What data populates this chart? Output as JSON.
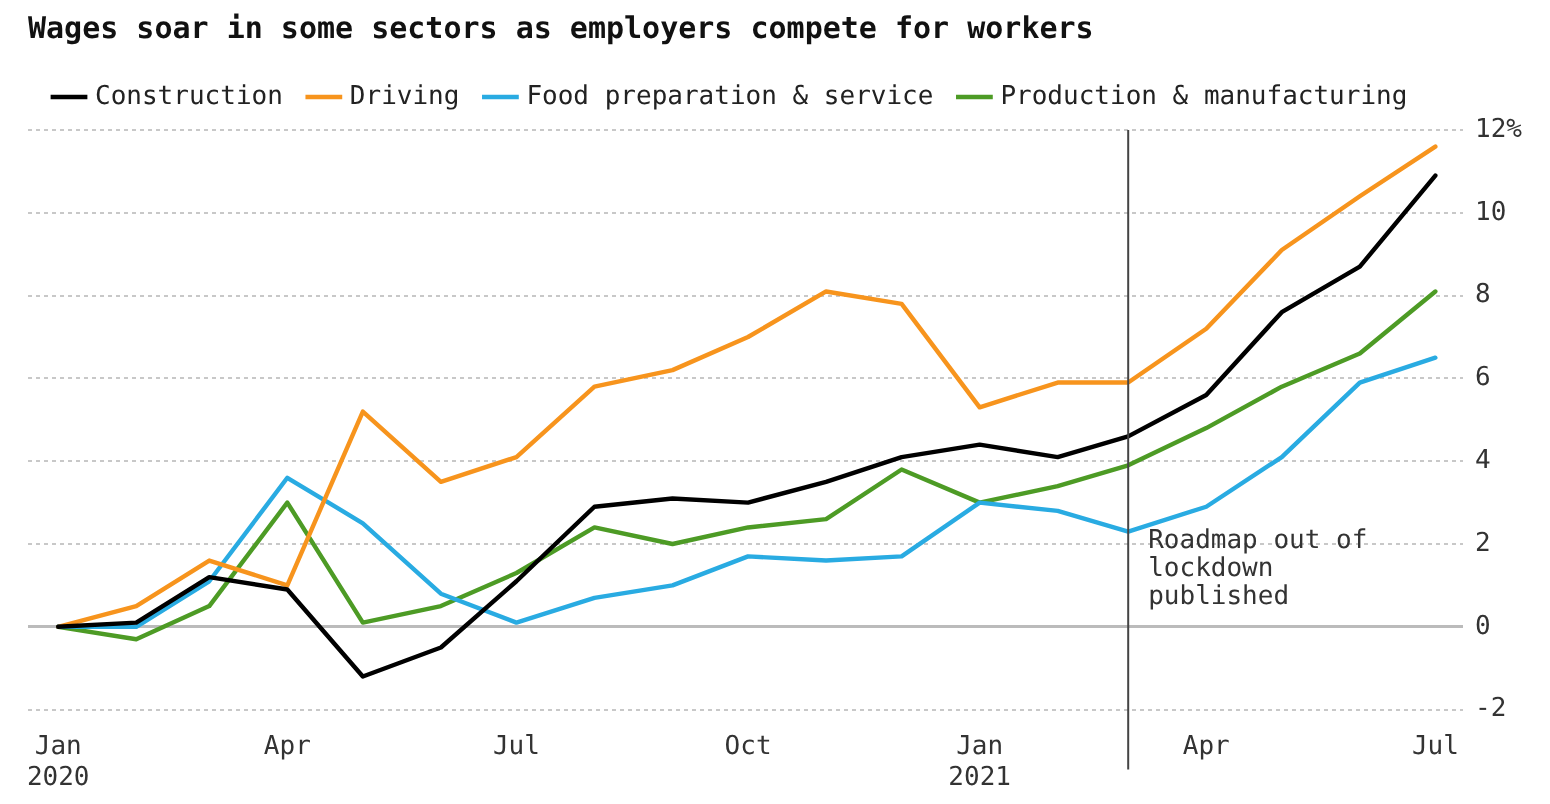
{
  "chart_data": {
    "type": "line",
    "title": "Wages soar in some sectors as employers compete for workers",
    "x": [
      "2020-01",
      "2020-02",
      "2020-03",
      "2020-04",
      "2020-05",
      "2020-06",
      "2020-07",
      "2020-08",
      "2020-09",
      "2020-10",
      "2020-11",
      "2020-12",
      "2021-01",
      "2021-02",
      "2021-03",
      "2021-04",
      "2021-05",
      "2021-06",
      "2021-07"
    ],
    "series": [
      {
        "name": "Construction",
        "color": "#000000",
        "values": [
          0,
          0.1,
          1.2,
          0.9,
          -1.2,
          -0.5,
          1.1,
          2.9,
          3.1,
          3.0,
          3.5,
          4.1,
          4.4,
          4.1,
          4.6,
          5.6,
          7.6,
          8.7,
          10.9
        ]
      },
      {
        "name": "Driving",
        "color": "#f7941d",
        "values": [
          0,
          0.5,
          1.6,
          1.0,
          5.2,
          3.5,
          4.1,
          5.8,
          6.2,
          7.0,
          8.1,
          7.8,
          5.3,
          5.9,
          5.9,
          7.2,
          9.1,
          10.4,
          11.6
        ]
      },
      {
        "name": "Food preparation & service",
        "color": "#29abe2",
        "values": [
          0,
          0,
          1.1,
          3.6,
          2.5,
          0.8,
          0.1,
          0.7,
          1.0,
          1.7,
          1.6,
          1.7,
          3.0,
          2.8,
          2.3,
          2.9,
          4.1,
          5.9,
          6.5
        ]
      },
      {
        "name": "Production & manufacturing",
        "color": "#4d9b25",
        "values": [
          0,
          -0.3,
          0.5,
          3.0,
          0.1,
          0.5,
          1.3,
          2.4,
          2.0,
          2.4,
          2.6,
          3.8,
          3.0,
          3.4,
          3.9,
          4.8,
          5.8,
          6.6,
          8.1
        ]
      }
    ],
    "xlim": [
      "2019-12-20",
      "2021-07-12"
    ],
    "xticks": [
      {
        "value": "2020-01",
        "label": "Jan\n2020"
      },
      {
        "value": "2020-04",
        "label": "Apr"
      },
      {
        "value": "2020-07",
        "label": "Jul"
      },
      {
        "value": "2020-10",
        "label": "Oct"
      },
      {
        "value": "2021-01",
        "label": "Jan\n2021"
      },
      {
        "value": "2021-04",
        "label": "Apr"
      },
      {
        "value": "2021-07",
        "label": "Jul"
      }
    ],
    "ylim": [
      -2,
      12
    ],
    "yticks": [
      -2,
      0,
      2,
      4,
      6,
      8,
      10,
      {
        "value": 12,
        "label": "12%"
      }
    ],
    "grid": "y",
    "legend": "top",
    "marker": "none",
    "line_style": "solid",
    "ref_lines": [
      {
        "axis": "x",
        "value": "2021-03-01",
        "label": "Roadmap out of lockdown published",
        "color": "#444444"
      }
    ]
  }
}
